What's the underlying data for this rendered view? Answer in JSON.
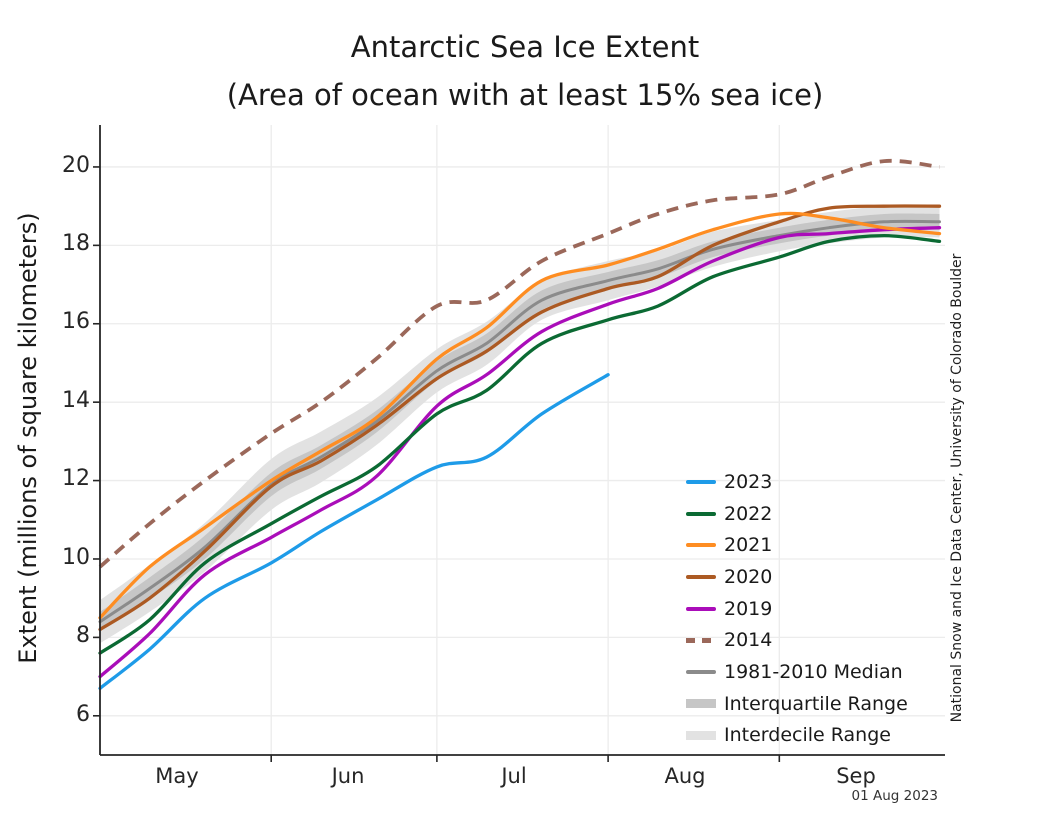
{
  "title": {
    "line1": "Antarctic Sea Ice Extent",
    "line2": "(Area of ocean with at least 15% sea ice)"
  },
  "axes": {
    "y": {
      "label": "Extent (millions of square kilometers)",
      "ticks": [
        "20",
        "18",
        "16",
        "14",
        "12",
        "10",
        "8",
        "6"
      ]
    },
    "x": {
      "ticks": [
        "May",
        "Jun",
        "Jul",
        "Aug",
        "Sep"
      ]
    }
  },
  "annotations": {
    "credit": "National Snow and Ice Data Center, University of Colorado Boulder",
    "date_stamp": "01 Aug 2023"
  },
  "legend": {
    "items": [
      {
        "label": "2023",
        "color": "#1E9BE8",
        "style": "line"
      },
      {
        "label": "2022",
        "color": "#0B6A33",
        "style": "line"
      },
      {
        "label": "2021",
        "color": "#FE8D22",
        "style": "line"
      },
      {
        "label": "2020",
        "color": "#AC5A23",
        "style": "line"
      },
      {
        "label": "2019",
        "color": "#AA0DB9",
        "style": "line"
      },
      {
        "label": "2014",
        "color": "#9B685A",
        "style": "dashed"
      },
      {
        "label": "1981-2010 Median",
        "color": "#8B8B8B",
        "style": "line"
      },
      {
        "label": "Interquartile Range",
        "color": "#C6C6C6",
        "style": "band"
      },
      {
        "label": "Interdecile Range",
        "color": "#E2E2E2",
        "style": "band"
      }
    ]
  },
  "chart_data": {
    "type": "line",
    "title": "Antarctic Sea Ice Extent (Area of ocean with at least 15% sea ice)",
    "xlabel": "",
    "ylabel": "Extent (millions of square kilometers)",
    "unit": "millions of square kilometers",
    "ylim": [
      5.0,
      21.07
    ],
    "y_gridlines": [
      6,
      8,
      10,
      12,
      14,
      16,
      18,
      20
    ],
    "x_range_days_from_may1": [
      0,
      153
    ],
    "month_start_days": {
      "Jun": 31,
      "Jul": 61,
      "Aug": 92,
      "Sep": 123
    },
    "month_label_days": {
      "May": 14,
      "Jun": 45,
      "Jul": 75,
      "Aug": 106,
      "Sep": 137
    },
    "sample_dates": [
      "May 1",
      "May 10",
      "May 20",
      "Jun 1",
      "Jun 10",
      "Jun 20",
      "Jul 1",
      "Jul 10",
      "Jul 20",
      "Aug 1",
      "Aug 10",
      "Aug 20",
      "Sep 1",
      "Sep 10",
      "Sep 20",
      "Sep 30"
    ],
    "sample_days": [
      0,
      9,
      19,
      31,
      40,
      50,
      61,
      70,
      80,
      92,
      101,
      111,
      123,
      132,
      142,
      152
    ],
    "series": [
      {
        "name": "1981-2010 Median",
        "color": "#8B8B8B",
        "dashed": false,
        "values": [
          8.4,
          9.25,
          10.3,
          11.9,
          12.6,
          13.5,
          14.8,
          15.5,
          16.6,
          17.1,
          17.4,
          17.9,
          18.25,
          18.45,
          18.6,
          18.6
        ]
      },
      {
        "name": "2014",
        "color": "#9B685A",
        "dashed": true,
        "values": [
          9.8,
          10.9,
          12.0,
          13.2,
          14.0,
          15.1,
          16.45,
          16.6,
          17.6,
          18.3,
          18.8,
          19.15,
          19.3,
          19.75,
          20.15,
          20.0
        ]
      },
      {
        "name": "2019",
        "color": "#AA0DB9",
        "dashed": false,
        "values": [
          7.0,
          8.1,
          9.6,
          10.55,
          11.25,
          12.1,
          13.9,
          14.7,
          15.8,
          16.5,
          16.9,
          17.6,
          18.2,
          18.3,
          18.4,
          18.45
        ]
      },
      {
        "name": "2020",
        "color": "#AC5A23",
        "dashed": false,
        "values": [
          8.2,
          9.0,
          10.2,
          11.85,
          12.5,
          13.4,
          14.6,
          15.3,
          16.3,
          16.9,
          17.2,
          18.0,
          18.6,
          18.95,
          19.0,
          19.0
        ]
      },
      {
        "name": "2021",
        "color": "#FE8D22",
        "dashed": false,
        "values": [
          8.5,
          9.8,
          10.8,
          12.0,
          12.75,
          13.6,
          15.1,
          15.9,
          17.1,
          17.5,
          17.9,
          18.4,
          18.8,
          18.7,
          18.45,
          18.3
        ]
      },
      {
        "name": "2022",
        "color": "#0B6A33",
        "dashed": false,
        "values": [
          7.6,
          8.45,
          9.9,
          10.9,
          11.6,
          12.35,
          13.7,
          14.3,
          15.5,
          16.1,
          16.45,
          17.2,
          17.7,
          18.1,
          18.25,
          18.1
        ]
      },
      {
        "name": "2023",
        "color": "#1E9BE8",
        "dashed": false,
        "values": [
          6.7,
          7.7,
          9.0,
          9.9,
          10.7,
          11.5,
          12.35,
          12.6,
          13.7,
          14.7,
          null,
          null,
          null,
          null,
          null,
          null
        ]
      }
    ],
    "bands": [
      {
        "name": "Interdecile Range",
        "center": "1981-2010 Median",
        "color": "#E2E2E2",
        "halfwidth": [
          0.55,
          0.6,
          0.62,
          0.65,
          0.65,
          0.6,
          0.55,
          0.55,
          0.5,
          0.5,
          0.45,
          0.45,
          0.4,
          0.4,
          0.4,
          0.4
        ]
      },
      {
        "name": "Interquartile Range",
        "center": "1981-2010 Median",
        "color": "#C6C6C6",
        "halfwidth": [
          0.25,
          0.28,
          0.3,
          0.3,
          0.3,
          0.28,
          0.25,
          0.25,
          0.25,
          0.22,
          0.22,
          0.2,
          0.2,
          0.2,
          0.2,
          0.2
        ]
      }
    ],
    "legend_position": "lower right",
    "grid": true
  }
}
